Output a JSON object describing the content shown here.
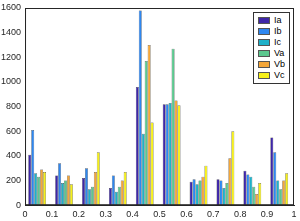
{
  "chart_data": {
    "type": "bar",
    "x": [
      0.045,
      0.145,
      0.245,
      0.345,
      0.445,
      0.545,
      0.645,
      0.745,
      0.845,
      0.945
    ],
    "series": [
      {
        "name": "Ia",
        "color": "#3e26a8",
        "values": [
          410,
          240,
          220,
          140,
          960,
          820,
          190,
          210,
          280,
          550
        ]
      },
      {
        "name": "Ib",
        "color": "#2e87f0",
        "values": [
          610,
          340,
          300,
          240,
          1580,
          820,
          210,
          200,
          250,
          430
        ]
      },
      {
        "name": "Ic",
        "color": "#1fb1c9",
        "values": [
          260,
          180,
          130,
          110,
          580,
          830,
          170,
          140,
          230,
          200
        ]
      },
      {
        "name": "Va",
        "color": "#5cc88f",
        "values": [
          230,
          200,
          150,
          150,
          1170,
          1270,
          200,
          180,
          150,
          130
        ]
      },
      {
        "name": "Vb",
        "color": "#f4a73a",
        "values": [
          290,
          240,
          270,
          200,
          1300,
          850,
          230,
          380,
          90,
          200
        ]
      },
      {
        "name": "Vc",
        "color": "#f6f01a",
        "values": [
          270,
          170,
          430,
          270,
          670,
          810,
          320,
          600,
          180,
          260
        ]
      }
    ],
    "xlim": [
      0,
      1
    ],
    "xticks": [
      0,
      0.1,
      0.2,
      0.3,
      0.4,
      0.5,
      0.6,
      0.7,
      0.8,
      0.9,
      1
    ],
    "ylim": [
      0,
      1600
    ],
    "yticks": [
      0,
      200,
      400,
      600,
      800,
      1000,
      1200,
      1400,
      1600
    ],
    "grid": false,
    "legend": "upper right"
  }
}
